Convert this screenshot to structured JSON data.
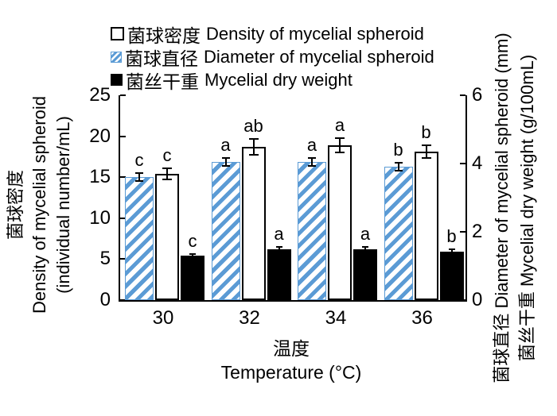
{
  "colors": {
    "hatch_blue": "#5B9BD5",
    "bar_black": "#000000",
    "bar_white": "#ffffff",
    "axis": "#000000"
  },
  "legend": {
    "rows": [
      {
        "series_id": "density",
        "zh": "菌球密度",
        "en": "Density of mycelial spheroid",
        "swatch": "white"
      },
      {
        "series_id": "diameter",
        "zh": "菌球直径",
        "en": "Diameter of mycelial spheroid",
        "swatch": "hatched"
      },
      {
        "series_id": "dry_weight",
        "zh": "菌丝干重",
        "en": "Mycelial dry weight",
        "swatch": "black"
      }
    ]
  },
  "chart_data": {
    "type": "bar",
    "categories": [
      "30",
      "32",
      "34",
      "36"
    ],
    "x_axis": {
      "title_zh": "温度",
      "title_en": "Temperature (°C)"
    },
    "left_axis": {
      "max": 25,
      "ticks": [
        0,
        5,
        10,
        15,
        20,
        25
      ],
      "title_zh": "菌球密度",
      "title_en_line1": "Density of mycelial spheroid",
      "title_en_line2": "(individual number/mL)"
    },
    "right_axis": {
      "max": 6,
      "ticks": [
        0,
        2,
        4,
        6
      ],
      "title_line1": "菌球直径 Diameter of mycelial spheroid (mm)",
      "title_line2": "菌丝干重 Mycelial dry weight (g/100mL)"
    },
    "series": [
      {
        "id": "diameter",
        "name_zh": "菌球直径",
        "name_en": "Diameter of mycelial spheroid",
        "axis": "right",
        "style": "hatched",
        "unit": "mm",
        "values": [
          3.6,
          4.05,
          4.05,
          3.9
        ],
        "errors": [
          0.12,
          0.12,
          0.12,
          0.12
        ],
        "sig_labels": [
          "c",
          "a",
          "a",
          "b"
        ]
      },
      {
        "id": "density",
        "name_zh": "菌球密度",
        "name_en": "Density of mycelial spheroid",
        "axis": "left",
        "style": "white",
        "unit": "individual number/mL",
        "values": [
          15.4,
          18.7,
          18.9,
          18.1
        ],
        "errors": [
          0.7,
          1.0,
          0.9,
          0.8
        ],
        "sig_labels": [
          "c",
          "ab",
          "a",
          "b"
        ]
      },
      {
        "id": "dry_weight",
        "name_zh": "菌丝干重",
        "name_en": "Mycelial dry weight",
        "axis": "right",
        "style": "black",
        "unit": "g/100mL",
        "values": [
          1.3,
          1.5,
          1.5,
          1.42
        ],
        "errors": [
          0.06,
          0.06,
          0.06,
          0.06
        ],
        "sig_labels": [
          "c",
          "a",
          "a",
          "b"
        ]
      }
    ],
    "legend_position": "top",
    "grid": false
  }
}
